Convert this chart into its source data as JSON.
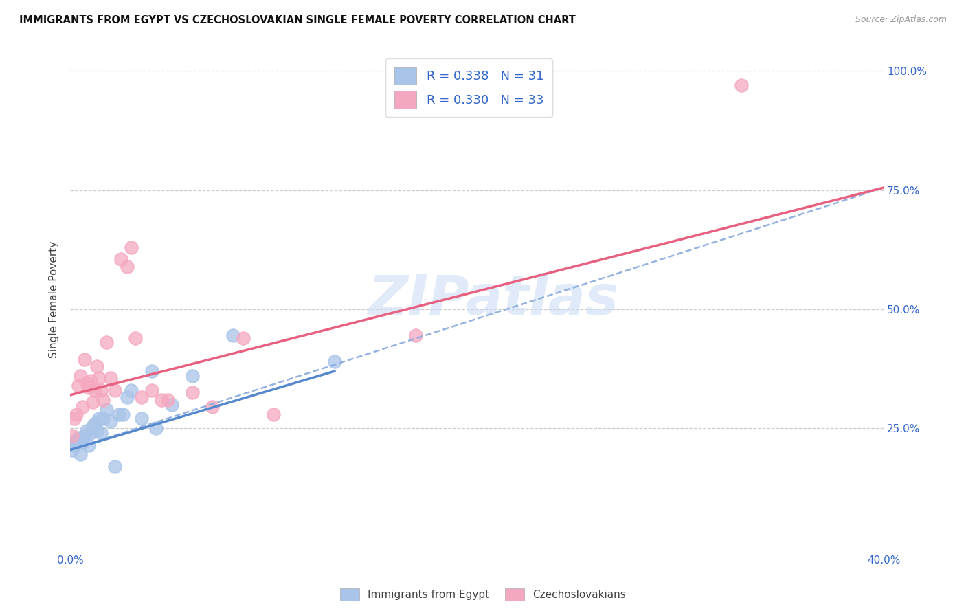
{
  "title": "IMMIGRANTS FROM EGYPT VS CZECHOSLOVAKIAN SINGLE FEMALE POVERTY CORRELATION CHART",
  "source": "Source: ZipAtlas.com",
  "ylabel": "Single Female Poverty",
  "legend_label1": "Immigrants from Egypt",
  "legend_label2": "Czechoslovakians",
  "r1": 0.338,
  "n1": 31,
  "r2": 0.33,
  "n2": 33,
  "blue_marker_color": "#a8c4e8",
  "pink_marker_color": "#f4a8c0",
  "blue_line_color": "#5588cc",
  "pink_line_color": "#e86080",
  "dashed_line_color": "#88aadd",
  "watermark_color": "#ccddf5",
  "blue_points_x": [
    0.001,
    0.002,
    0.002,
    0.003,
    0.004,
    0.005,
    0.006,
    0.007,
    0.008,
    0.009,
    0.01,
    0.011,
    0.012,
    0.013,
    0.014,
    0.015,
    0.016,
    0.018,
    0.02,
    0.022,
    0.024,
    0.026,
    0.028,
    0.03,
    0.035,
    0.04,
    0.042,
    0.05,
    0.06,
    0.08,
    0.13
  ],
  "blue_points_y": [
    0.205,
    0.215,
    0.22,
    0.225,
    0.23,
    0.195,
    0.22,
    0.235,
    0.245,
    0.215,
    0.24,
    0.255,
    0.26,
    0.245,
    0.27,
    0.24,
    0.27,
    0.29,
    0.265,
    0.17,
    0.28,
    0.28,
    0.315,
    0.33,
    0.27,
    0.37,
    0.25,
    0.3,
    0.36,
    0.445,
    0.39
  ],
  "pink_points_x": [
    0.001,
    0.002,
    0.003,
    0.004,
    0.005,
    0.006,
    0.007,
    0.008,
    0.009,
    0.01,
    0.011,
    0.012,
    0.013,
    0.014,
    0.015,
    0.016,
    0.018,
    0.02,
    0.022,
    0.025,
    0.028,
    0.03,
    0.032,
    0.035,
    0.04,
    0.045,
    0.048,
    0.06,
    0.07,
    0.085,
    0.1,
    0.17,
    0.33
  ],
  "pink_points_y": [
    0.235,
    0.27,
    0.28,
    0.34,
    0.36,
    0.295,
    0.395,
    0.345,
    0.335,
    0.35,
    0.305,
    0.33,
    0.38,
    0.355,
    0.33,
    0.31,
    0.43,
    0.355,
    0.33,
    0.605,
    0.59,
    0.63,
    0.44,
    0.315,
    0.33,
    0.31,
    0.31,
    0.325,
    0.295,
    0.44,
    0.28,
    0.445,
    0.97
  ],
  "xlim": [
    0.0,
    0.4
  ],
  "ylim": [
    -0.01,
    1.05
  ],
  "blue_line_x": [
    0.0,
    0.13
  ],
  "blue_line_y": [
    0.205,
    0.37
  ],
  "pink_line_x": [
    0.0,
    0.4
  ],
  "pink_line_y": [
    0.32,
    0.755
  ],
  "dashed_line_x": [
    0.0,
    0.4
  ],
  "dashed_line_y": [
    0.205,
    0.755
  ],
  "ytick_vals": [
    0.25,
    0.5,
    0.75,
    1.0
  ],
  "ytick_labels": [
    "25.0%",
    "50.0%",
    "75.0%",
    "100.0%"
  ],
  "xtick_vals": [
    0.0,
    0.08,
    0.16,
    0.24,
    0.32,
    0.4
  ],
  "xtick_labels": [
    "0.0%",
    "",
    "",
    "",
    "",
    "40.0%"
  ]
}
